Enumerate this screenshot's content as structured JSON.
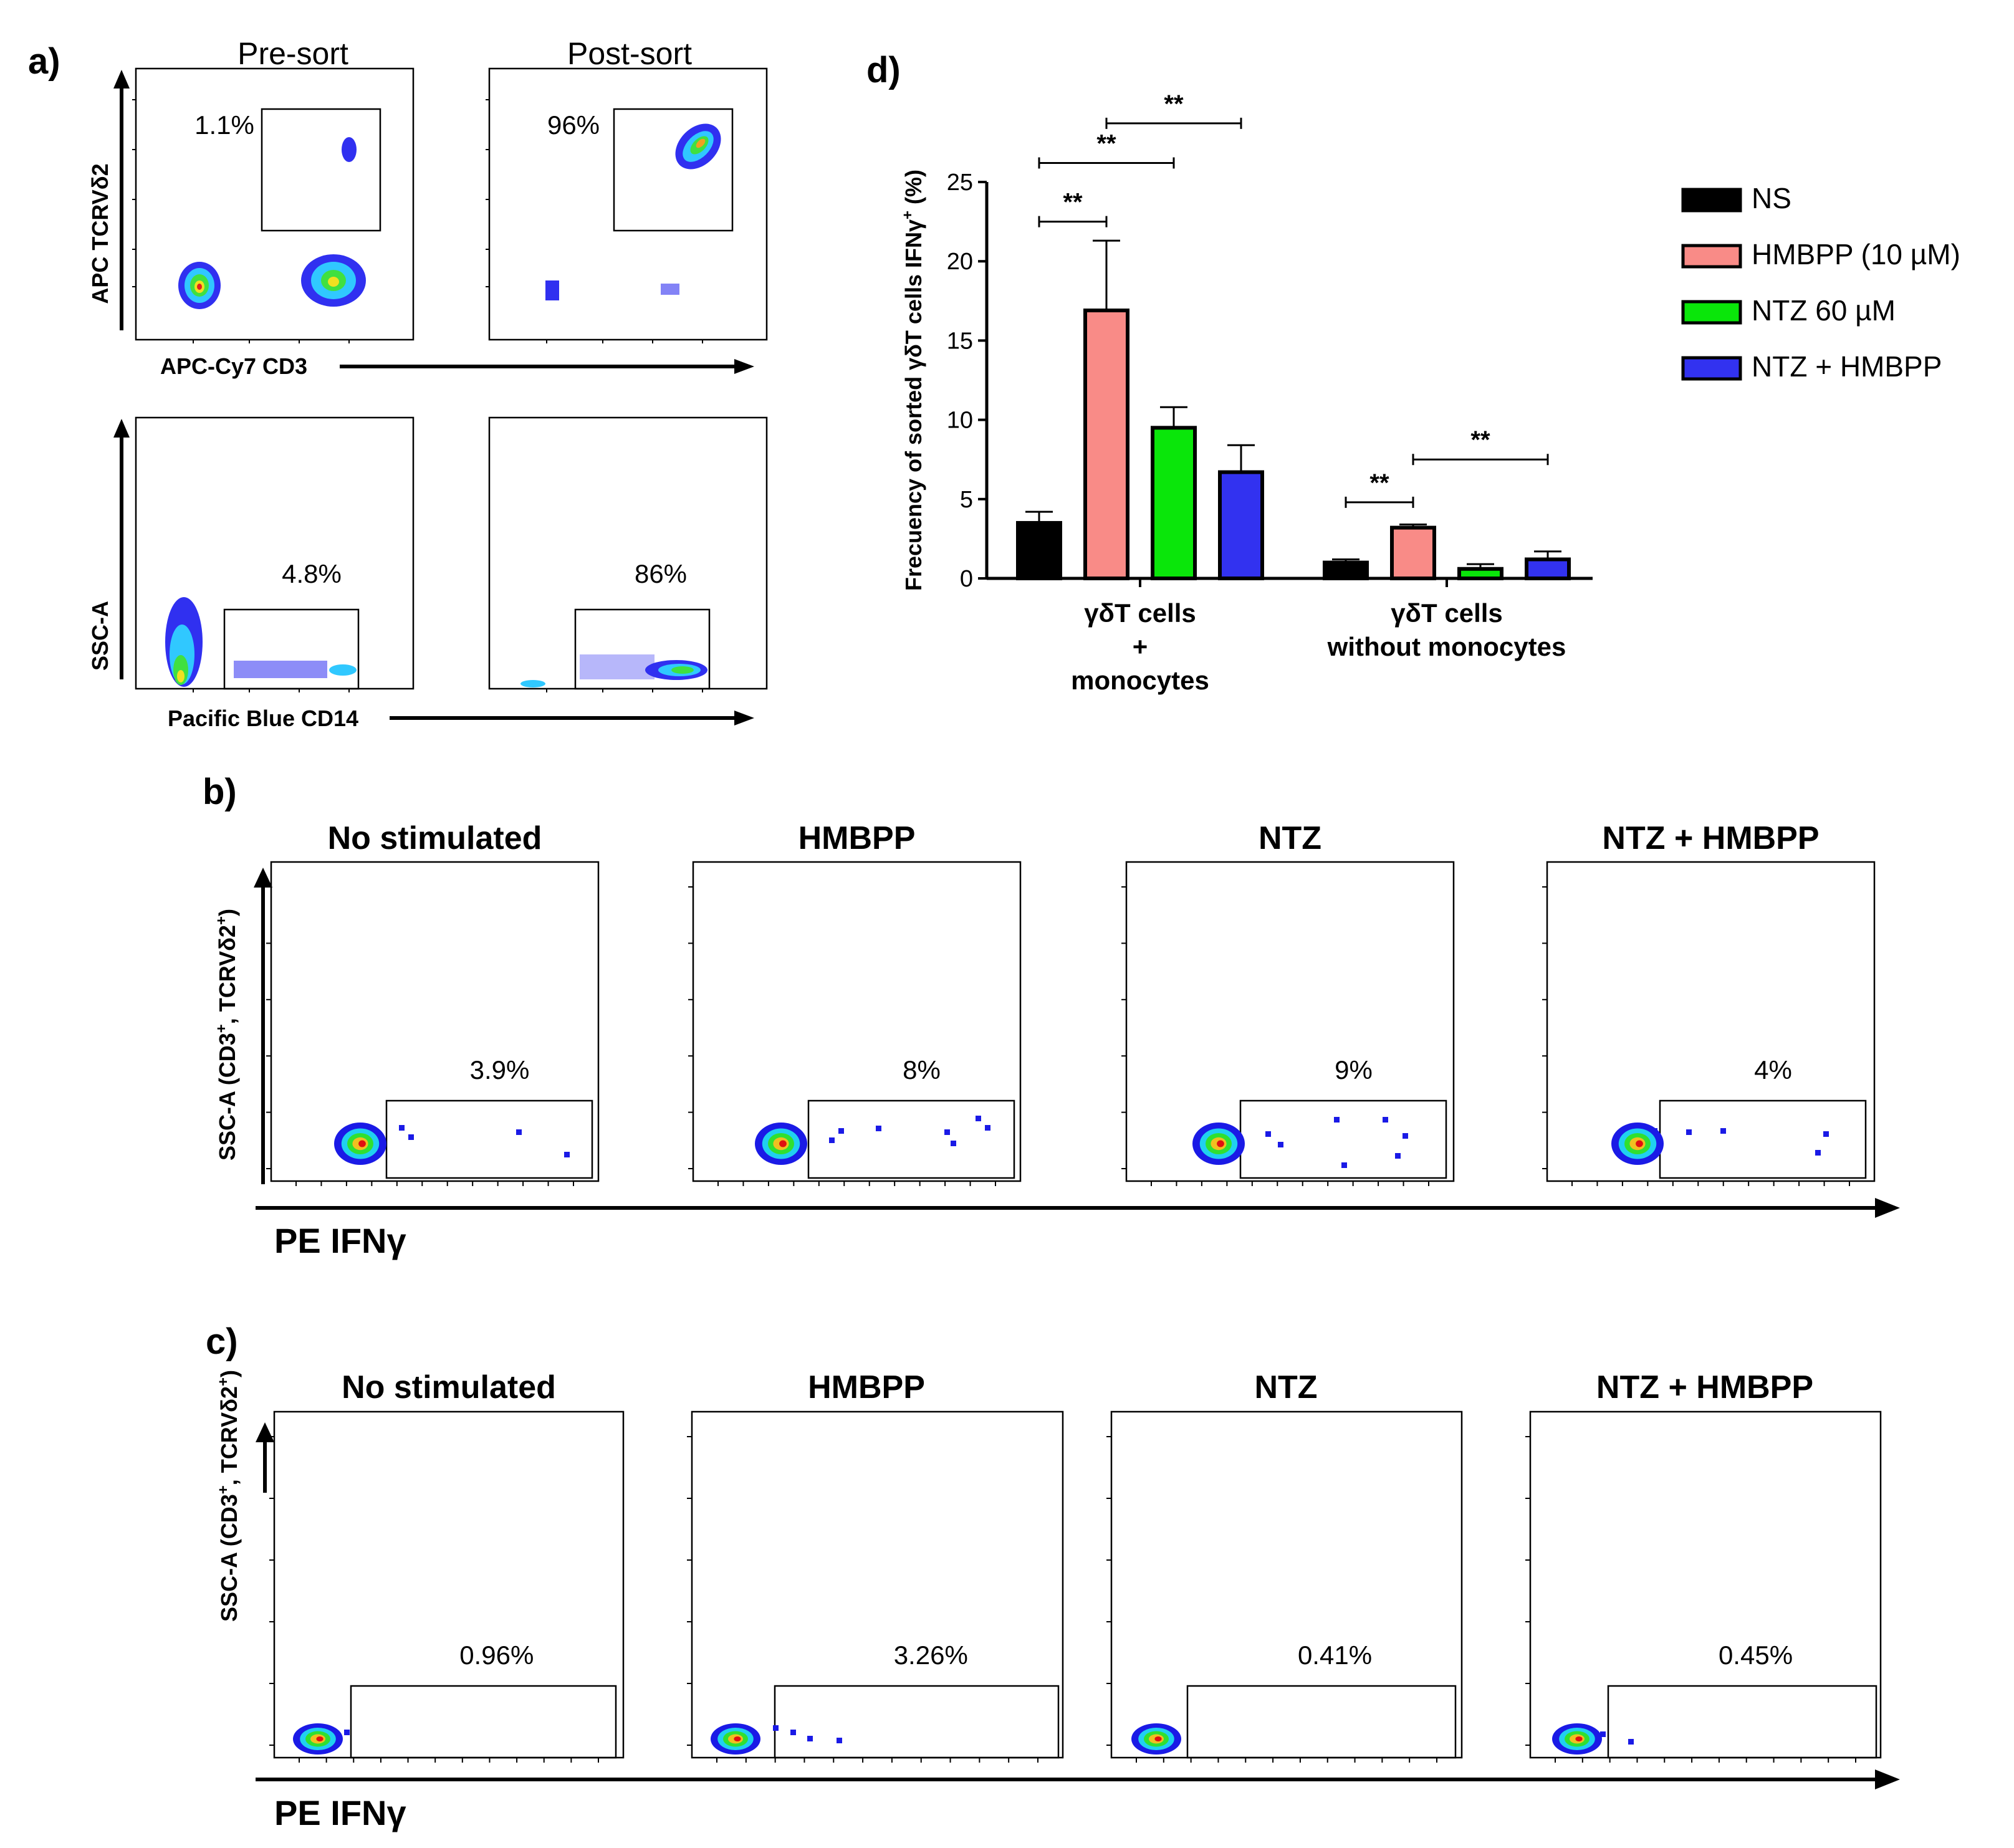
{
  "panels": {
    "a": {
      "letter": "a)",
      "col_titles": [
        "Pre-sort",
        "Post-sort"
      ],
      "row1": {
        "ylabel": "APC TCRVδ2",
        "xlabel": "APC-Cy7 CD3",
        "gates": [
          "1.1%",
          "96%"
        ]
      },
      "row2": {
        "ylabel": "SSC-A",
        "xlabel": "Pacific Blue CD14",
        "gates": [
          "4.8%",
          "86%"
        ]
      }
    },
    "b": {
      "letter": "b)",
      "ylabel_main": "SSC-A (CD3",
      "ylabel_mid": ", TCRVδ2",
      "ylabel_end": ")",
      "sup_plus": "+",
      "xlabel": "PE IFNγ",
      "conditions": [
        "No stimulated",
        "HMBPP",
        "NTZ",
        "NTZ + HMBPP"
      ],
      "gates": [
        "3.9%",
        "8%",
        "9%",
        "4%"
      ]
    },
    "c": {
      "letter": "c)",
      "xlabel": "PE IFNγ",
      "conditions": [
        "No stimulated",
        "HMBPP",
        "NTZ",
        "NTZ + HMBPP"
      ],
      "gates": [
        "0.96%",
        "3.26%",
        "0.41%",
        "0.45%"
      ]
    },
    "d": {
      "letter": "d)"
    }
  },
  "chart_data": {
    "type": "bar",
    "ylabel_main": "Frecuency of sorted γδT cells IFNγ",
    "ylabel_sup": "+",
    "ylabel_end": " (%)",
    "ylim": [
      0,
      25
    ],
    "yticks": [
      0,
      5,
      10,
      15,
      20,
      25
    ],
    "groups": [
      {
        "label_lines": [
          "γδT cells",
          "+",
          "monocytes"
        ]
      },
      {
        "label_lines": [
          "γδT cells",
          "without monocytes"
        ]
      }
    ],
    "series": [
      {
        "name": "NS",
        "color": "#000000",
        "values": [
          3.5,
          1.0
        ],
        "errors": [
          0.7,
          0.2
        ]
      },
      {
        "name": "HMBPP (10 µM)",
        "color": "#f98b87",
        "values": [
          16.9,
          3.2
        ],
        "errors": [
          4.4,
          0.2
        ]
      },
      {
        "name": "NTZ 60 µM",
        "color": "#0ae60a",
        "values": [
          9.5,
          0.6
        ],
        "errors": [
          1.3,
          0.3
        ]
      },
      {
        "name": "NTZ + HMBPP",
        "color": "#3232f0",
        "values": [
          6.7,
          1.2
        ],
        "errors": [
          1.7,
          0.5
        ]
      }
    ],
    "significance": [
      {
        "group": 0,
        "from": 0,
        "to": 1,
        "label": "**",
        "level": 22.5
      },
      {
        "group": 0,
        "from": 0,
        "to": 2,
        "label": "**",
        "level": 26.2
      },
      {
        "group": 0,
        "from": 1,
        "to": 3,
        "label": "**",
        "level": 28.7
      },
      {
        "group": 1,
        "from": 0,
        "to": 1,
        "label": "**",
        "level": 4.8
      },
      {
        "group": 1,
        "from": 1,
        "to": 3,
        "label": "**",
        "level": 7.5
      }
    ]
  }
}
